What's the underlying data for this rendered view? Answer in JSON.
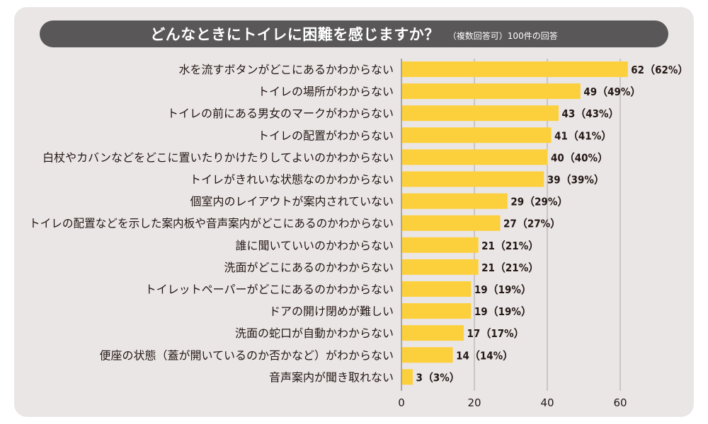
{
  "header": {
    "title": "どんなときにトイレに困難を感じますか？",
    "subtitle": "（複数回答可）100件の回答"
  },
  "colors": {
    "bar": "#fcd03c",
    "panel": "#ebe6e6",
    "title_bar": "#595757",
    "grid": "#a9a5a3"
  },
  "chart_data": {
    "type": "bar",
    "orientation": "horizontal",
    "title": "どんなときにトイレに困難を感じますか？",
    "subtitle": "（複数回答可）100件の回答",
    "categories": [
      "水を流すボタンがどこにあるかわからない",
      "トイレの場所がわからない",
      "トイレの前にある男女のマークがわからない",
      "トイレの配置がわからない",
      "白杖やカバンなどをどこに置いたりかけたりしてよいのかわからない",
      "トイレがきれいな状態なのかわからない",
      "個室内のレイアウトが案内されていない",
      "トイレの配置などを示した案内板や音声案内がどこにあるのかわからない",
      "誰に聞いていいのかわからない",
      "洗面がどこにあるのかわからない",
      "トイレットペーパーがどこにあるのかわからない",
      "ドアの開け閉めが難しい",
      "洗面の蛇口が自動かわからない",
      "便座の状態（蓋が開いているのか否かなど）がわからない",
      "音声案内が聞き取れない"
    ],
    "values": [
      62,
      49,
      43,
      41,
      40,
      39,
      29,
      27,
      21,
      21,
      19,
      19,
      17,
      14,
      3
    ],
    "value_labels": [
      "62（62%）",
      "49（49%）",
      "43（43%）",
      "41（41%）",
      "40（40%）",
      "39（39%）",
      "29（29%）",
      "27（27%）",
      "21（21%）",
      "21（21%）",
      "19（19%）",
      "19（19%）",
      "17（17%）",
      "14（14%）",
      "3（3%）"
    ],
    "x_ticks": [
      "0",
      "20",
      "40",
      "60"
    ],
    "x_tick_values": [
      0,
      20,
      40,
      60
    ],
    "xlim": [
      0,
      62
    ],
    "grid": true
  }
}
